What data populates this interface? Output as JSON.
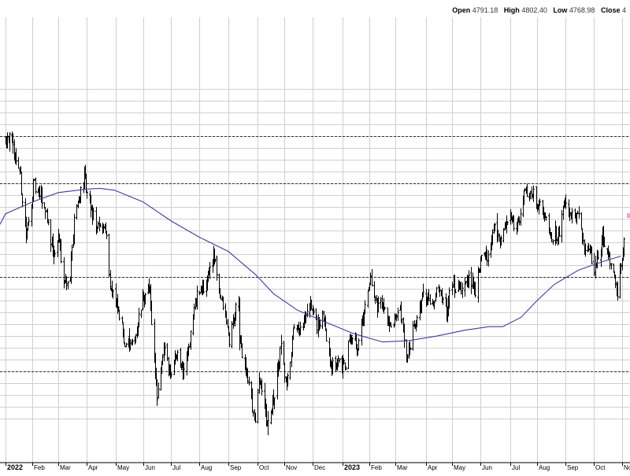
{
  "header": {
    "open_label": "Open",
    "open_value": "4791.18",
    "high_label": "High",
    "high_value": "4802.40",
    "low_label": "Low",
    "low_value": "4768.98",
    "close_label": "Close",
    "close_value": "4"
  },
  "chart_data": {
    "type": "ohlc",
    "x_tick_labels": [
      "2022",
      "Feb",
      "Mar",
      "Apr",
      "May",
      "Jun",
      "Jul",
      "Aug",
      "Sep",
      "Oct",
      "Nov",
      "Dec",
      "2023",
      "Feb",
      "Mar",
      "Apr",
      "May",
      "Jun",
      "Jul",
      "Aug",
      "Sep",
      "Oct",
      "Nov"
    ],
    "bold_tick_labels": [
      "2022",
      "2023"
    ],
    "price_path": [
      [
        "2022-01-03",
        4790
      ],
      [
        "2022-01-05",
        4810
      ],
      [
        "2022-01-10",
        4750
      ],
      [
        "2022-01-18",
        4660
      ],
      [
        "2022-01-25",
        4370
      ],
      [
        "2022-01-28",
        4430
      ],
      [
        "2022-02-02",
        4590
      ],
      [
        "2022-02-10",
        4540
      ],
      [
        "2022-02-16",
        4480
      ],
      [
        "2022-02-24",
        4290
      ],
      [
        "2022-03-01",
        4370
      ],
      [
        "2022-03-08",
        4190
      ],
      [
        "2022-03-14",
        4200
      ],
      [
        "2022-03-18",
        4460
      ],
      [
        "2022-03-29",
        4630
      ],
      [
        "2022-04-01",
        4545
      ],
      [
        "2022-04-06",
        4480
      ],
      [
        "2022-04-12",
        4400
      ],
      [
        "2022-04-21",
        4420
      ],
      [
        "2022-04-26",
        4170
      ],
      [
        "2022-04-29",
        4130
      ],
      [
        "2022-05-05",
        4050
      ],
      [
        "2022-05-12",
        3930
      ],
      [
        "2022-05-20",
        3900
      ],
      [
        "2022-05-25",
        3980
      ],
      [
        "2022-06-01",
        4110
      ],
      [
        "2022-06-08",
        4140
      ],
      [
        "2022-06-16",
        3670
      ],
      [
        "2022-06-24",
        3910
      ],
      [
        "2022-06-30",
        3790
      ],
      [
        "2022-07-08",
        3900
      ],
      [
        "2022-07-14",
        3790
      ],
      [
        "2022-07-22",
        3960
      ],
      [
        "2022-07-29",
        4130
      ],
      [
        "2022-08-05",
        4140
      ],
      [
        "2022-08-16",
        4300
      ],
      [
        "2022-08-22",
        4140
      ],
      [
        "2022-08-29",
        4030
      ],
      [
        "2022-09-02",
        3930
      ],
      [
        "2022-09-12",
        4110
      ],
      [
        "2022-09-13",
        3930
      ],
      [
        "2022-09-21",
        3790
      ],
      [
        "2022-09-30",
        3585
      ],
      [
        "2022-10-05",
        3780
      ],
      [
        "2022-10-12",
        3580
      ],
      [
        "2022-10-20",
        3670
      ],
      [
        "2022-10-28",
        3900
      ],
      [
        "2022-11-03",
        3720
      ],
      [
        "2022-11-10",
        3960
      ],
      [
        "2022-11-18",
        3970
      ],
      [
        "2022-11-30",
        4080
      ],
      [
        "2022-12-05",
        4000
      ],
      [
        "2022-12-13",
        4020
      ],
      [
        "2022-12-22",
        3820
      ],
      [
        "2022-12-30",
        3840
      ],
      [
        "2023-01-05",
        3810
      ],
      [
        "2023-01-12",
        3980
      ],
      [
        "2023-01-19",
        3900
      ],
      [
        "2023-01-27",
        4070
      ],
      [
        "2023-02-02",
        4180
      ],
      [
        "2023-02-09",
        4080
      ],
      [
        "2023-02-16",
        4090
      ],
      [
        "2023-02-24",
        3970
      ],
      [
        "2023-03-06",
        4050
      ],
      [
        "2023-03-13",
        3850
      ],
      [
        "2023-03-21",
        4000
      ],
      [
        "2023-03-31",
        4110
      ],
      [
        "2023-04-10",
        4110
      ],
      [
        "2023-04-18",
        4150
      ],
      [
        "2023-04-25",
        4070
      ],
      [
        "2023-05-01",
        4170
      ],
      [
        "2023-05-10",
        4140
      ],
      [
        "2023-05-19",
        4190
      ],
      [
        "2023-05-26",
        4150
      ],
      [
        "2023-06-02",
        4280
      ],
      [
        "2023-06-09",
        4300
      ],
      [
        "2023-06-15",
        4420
      ],
      [
        "2023-06-23",
        4350
      ],
      [
        "2023-06-30",
        4450
      ],
      [
        "2023-07-10",
        4410
      ],
      [
        "2023-07-19",
        4560
      ],
      [
        "2023-07-26",
        4570
      ],
      [
        "2023-08-03",
        4500
      ],
      [
        "2023-08-11",
        4460
      ],
      [
        "2023-08-18",
        4370
      ],
      [
        "2023-08-25",
        4400
      ],
      [
        "2023-08-31",
        4510
      ],
      [
        "2023-09-08",
        4450
      ],
      [
        "2023-09-15",
        4450
      ],
      [
        "2023-09-21",
        4330
      ],
      [
        "2023-09-28",
        4300
      ],
      [
        "2023-10-03",
        4230
      ],
      [
        "2023-10-11",
        4380
      ],
      [
        "2023-10-19",
        4280
      ],
      [
        "2023-10-27",
        4120
      ],
      [
        "2023-11-03",
        4360
      ]
    ],
    "moving_average": [
      [
        "2022-01-03",
        4470
      ],
      [
        "2022-02-01",
        4520
      ],
      [
        "2022-03-01",
        4560
      ],
      [
        "2022-04-01",
        4575
      ],
      [
        "2022-04-15",
        4578
      ],
      [
        "2022-05-01",
        4570
      ],
      [
        "2022-06-01",
        4520
      ],
      [
        "2022-07-01",
        4440
      ],
      [
        "2022-08-01",
        4370
      ],
      [
        "2022-09-01",
        4310
      ],
      [
        "2022-10-01",
        4210
      ],
      [
        "2022-10-20",
        4130
      ],
      [
        "2022-11-15",
        4060
      ],
      [
        "2022-12-15",
        4010
      ],
      [
        "2023-01-15",
        3960
      ],
      [
        "2023-02-15",
        3925
      ],
      [
        "2023-03-15",
        3930
      ],
      [
        "2023-04-15",
        3950
      ],
      [
        "2023-05-15",
        3975
      ],
      [
        "2023-06-10",
        3990
      ],
      [
        "2023-06-25",
        3990
      ],
      [
        "2023-07-15",
        4030
      ],
      [
        "2023-08-01",
        4100
      ],
      [
        "2023-08-20",
        4170
      ],
      [
        "2023-09-15",
        4230
      ],
      [
        "2023-10-10",
        4265
      ],
      [
        "2023-10-31",
        4290
      ]
    ],
    "horizontal_lines": [
      4800,
      4600,
      4200,
      3800
    ],
    "colors": {
      "bars": "#000000",
      "moving_average": "#3b3f9a",
      "grid": "#cfcfcf",
      "reference_lines": "#333333",
      "marker": "#e6a6d8"
    }
  }
}
